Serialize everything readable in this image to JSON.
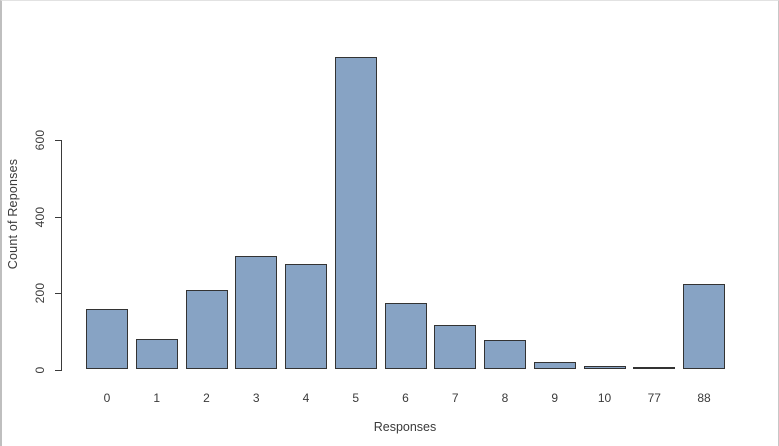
{
  "window": {
    "background": "#ffffff",
    "edge_border_color": "#bfbfbf"
  },
  "chart_data": {
    "type": "bar",
    "title": "",
    "categories": [
      "0",
      "1",
      "2",
      "3",
      "4",
      "5",
      "6",
      "7",
      "8",
      "9",
      "10",
      "77",
      "88"
    ],
    "values": [
      157,
      77,
      207,
      295,
      274,
      813,
      172,
      115,
      76,
      18,
      8,
      5,
      222
    ],
    "xlabel": "Responses",
    "ylabel": "Count of Reponses",
    "y_ticks": [
      0,
      200,
      400,
      600
    ],
    "y_tick_labels": [
      "0",
      "200",
      "400",
      "600"
    ],
    "ylim": [
      0,
      820
    ],
    "grid": false,
    "legend": false,
    "bar_fill": "#87a3c4",
    "bar_border": "#333333",
    "axis_color": "#3a3a3a",
    "text_color": "#3a3a3a"
  }
}
